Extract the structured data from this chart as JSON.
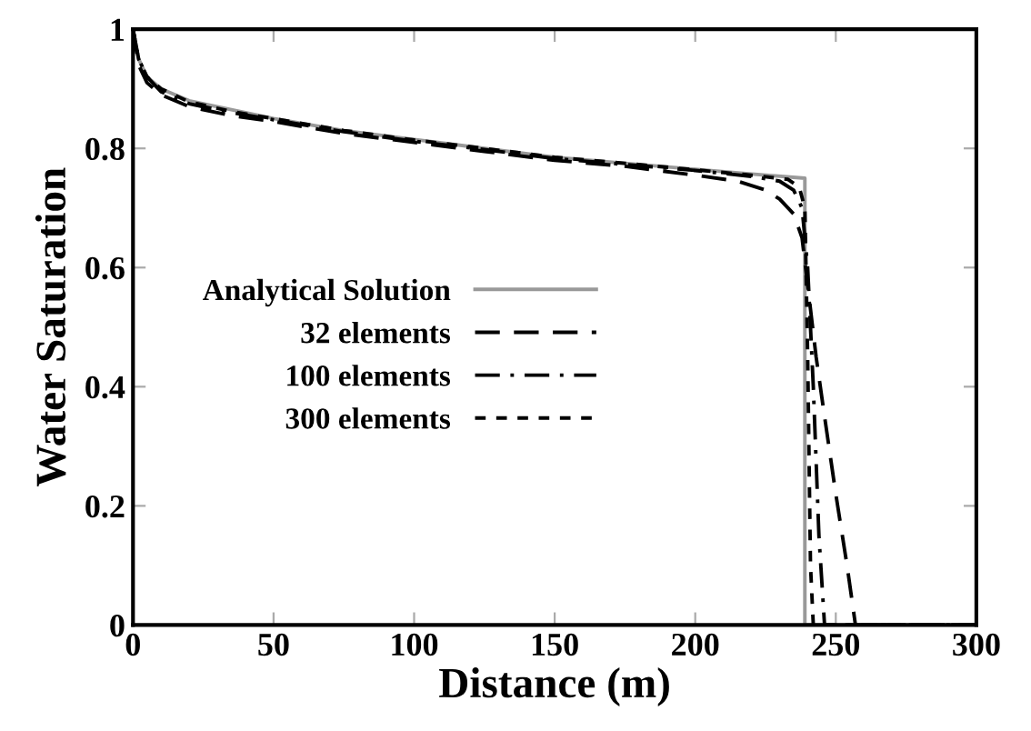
{
  "chart_data": {
    "type": "line",
    "xlabel": "Distance (m)",
    "ylabel": "Water Saturation",
    "xlim": [
      0,
      300
    ],
    "ylim": [
      0,
      1
    ],
    "xticks": [
      0,
      50,
      100,
      150,
      200,
      250,
      300
    ],
    "yticks": [
      0,
      0.2,
      0.4,
      0.6,
      0.8,
      1
    ],
    "grid": false,
    "legend": "left",
    "marker": "none",
    "series": [
      {
        "name": "Analytical Solution",
        "color": "#999999",
        "line_style": "solid",
        "x": [
          0,
          2,
          5,
          10,
          20,
          35,
          50,
          75,
          100,
          125,
          150,
          175,
          200,
          220,
          239,
          239,
          300
        ],
        "values": [
          1,
          0.95,
          0.92,
          0.9,
          0.88,
          0.865,
          0.85,
          0.83,
          0.815,
          0.8,
          0.785,
          0.775,
          0.765,
          0.757,
          0.75,
          0,
          0
        ]
      },
      {
        "name": "32 elements",
        "color": "#000000",
        "line_style": "dashed",
        "x": [
          0,
          2,
          5,
          10,
          20,
          35,
          50,
          75,
          100,
          125,
          150,
          175,
          200,
          215,
          225,
          230,
          235,
          238,
          240,
          243,
          246,
          250,
          254,
          257,
          300
        ],
        "values": [
          1,
          0.94,
          0.91,
          0.89,
          0.87,
          0.855,
          0.845,
          0.825,
          0.81,
          0.795,
          0.78,
          0.77,
          0.755,
          0.745,
          0.73,
          0.715,
          0.69,
          0.65,
          0.57,
          0.45,
          0.35,
          0.22,
          0.1,
          0,
          0
        ]
      },
      {
        "name": "100 elements",
        "color": "#000000",
        "line_style": "dashdot",
        "x": [
          0,
          2,
          5,
          10,
          20,
          35,
          50,
          75,
          100,
          125,
          150,
          175,
          200,
          220,
          230,
          235,
          238,
          240,
          242,
          244,
          246,
          300
        ],
        "values": [
          1,
          0.95,
          0.92,
          0.895,
          0.875,
          0.86,
          0.848,
          0.828,
          0.812,
          0.798,
          0.783,
          0.773,
          0.763,
          0.753,
          0.745,
          0.73,
          0.7,
          0.6,
          0.4,
          0.15,
          0,
          0
        ]
      },
      {
        "name": "300 elements",
        "color": "#000000",
        "line_style": "dotted",
        "x": [
          0,
          2,
          5,
          10,
          20,
          35,
          50,
          75,
          100,
          125,
          150,
          175,
          200,
          220,
          233,
          237,
          239,
          240,
          241,
          242,
          300
        ],
        "values": [
          1,
          0.95,
          0.92,
          0.9,
          0.878,
          0.862,
          0.85,
          0.83,
          0.814,
          0.8,
          0.785,
          0.775,
          0.764,
          0.755,
          0.748,
          0.735,
          0.7,
          0.45,
          0.1,
          0,
          0
        ]
      }
    ]
  }
}
